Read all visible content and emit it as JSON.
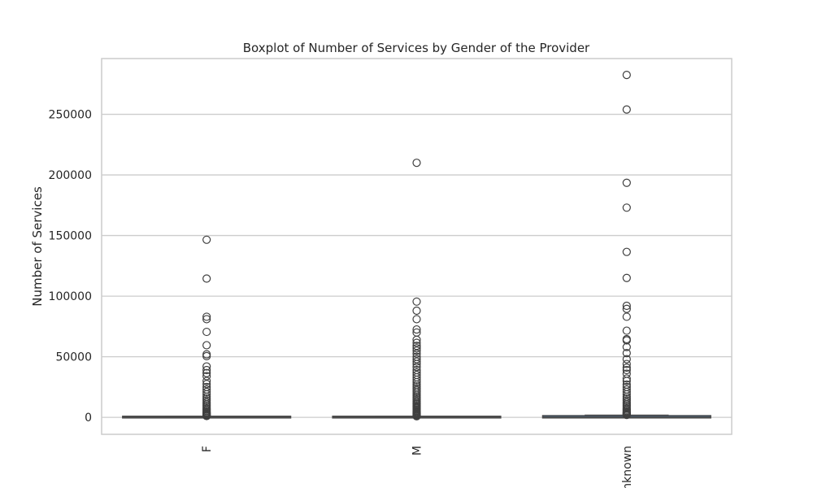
{
  "chart_data": {
    "type": "box",
    "title": "Boxplot of Number of Services by Gender of the Provider",
    "xlabel": "",
    "ylabel": "Number of Services",
    "categories": [
      "F",
      "M",
      "Unknown"
    ],
    "ylim": [
      -14000,
      296000
    ],
    "yticks": [
      0,
      50000,
      100000,
      150000,
      200000,
      250000
    ],
    "grid": true,
    "box_stats": [
      {
        "category": "F",
        "min": 0,
        "q1": 30,
        "median": 100,
        "q3": 400,
        "max": 800
      },
      {
        "category": "M",
        "min": 0,
        "q1": 30,
        "median": 100,
        "q3": 400,
        "max": 800
      },
      {
        "category": "Unknown",
        "min": 0,
        "q1": 50,
        "median": 200,
        "q3": 900,
        "max": 1800
      }
    ],
    "outliers": [
      {
        "category": "F",
        "values": [
          146500,
          114500,
          83000,
          81000,
          70500,
          59500,
          52000,
          50500,
          42000,
          39000,
          36500,
          34000,
          30000,
          27500,
          25000,
          23000,
          21000,
          19000,
          17000,
          15500,
          14000,
          12500,
          11000,
          9800,
          8600,
          7400,
          6300,
          5300,
          4400,
          3600,
          2900,
          2300,
          1800,
          1400,
          1100
        ]
      },
      {
        "category": "M",
        "values": [
          210000,
          95500,
          88000,
          81000,
          72500,
          70000,
          64000,
          61500,
          59000,
          57000,
          55000,
          52500,
          50000,
          48000,
          46000,
          44000,
          41500,
          39000,
          37000,
          35000,
          33000,
          31000,
          29000,
          27000,
          25500,
          24000,
          22500,
          21000,
          19500,
          18000,
          16800,
          15600,
          14400,
          13200,
          12000,
          11000,
          10000,
          9000,
          8000,
          7100,
          6200,
          5400,
          4600,
          3900,
          3200,
          2600,
          2100,
          1600,
          1200,
          900
        ]
      },
      {
        "category": "Unknown",
        "values": [
          282500,
          254000,
          193500,
          173000,
          136500,
          115000,
          92000,
          89500,
          83000,
          71500,
          64500,
          63500,
          58000,
          53000,
          48000,
          44000,
          41000,
          39000,
          36000,
          32000,
          30000,
          27000,
          25000,
          23000,
          21000,
          19000,
          17000,
          15500,
          14000,
          12500,
          11000,
          9800,
          8600,
          7400,
          6300,
          5300,
          4400,
          3600,
          2900,
          2400,
          2000
        ]
      }
    ]
  }
}
